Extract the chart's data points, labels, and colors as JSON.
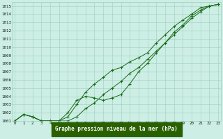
{
  "xlabel": "Graphe pression niveau de la mer (hPa)",
  "xlim": [
    -0.3,
    23.3
  ],
  "ylim": [
    1001,
    1015.5
  ],
  "yticks": [
    1001,
    1002,
    1003,
    1004,
    1005,
    1006,
    1007,
    1008,
    1009,
    1010,
    1011,
    1012,
    1013,
    1014,
    1015
  ],
  "xticks": [
    0,
    1,
    2,
    3,
    4,
    5,
    6,
    7,
    8,
    9,
    10,
    11,
    12,
    13,
    14,
    15,
    16,
    17,
    18,
    19,
    20,
    21,
    22,
    23
  ],
  "background_color": "#cceee4",
  "grid_color": "#9ecfbf",
  "line_color": "#1a6b1a",
  "label_bg_color": "#2a6000",
  "label_fg_color": "#ffffff",
  "series": [
    [
      1001.0,
      1001.8,
      1001.5,
      1001.0,
      1001.0,
      1001.0,
      1001.5,
      1003.0,
      1004.5,
      1005.5,
      1006.3,
      1007.2,
      1007.5,
      1008.2,
      1008.7,
      1009.3,
      1010.5,
      1011.5,
      1012.5,
      1013.3,
      1014.0,
      1014.8,
      1015.0,
      1015.2
    ],
    [
      1001.0,
      1001.8,
      1001.5,
      1001.0,
      1001.0,
      1001.0,
      1001.0,
      1001.5,
      1002.5,
      1003.2,
      1004.2,
      1005.0,
      1005.8,
      1006.8,
      1007.5,
      1008.5,
      1009.5,
      1010.5,
      1011.5,
      1012.5,
      1013.5,
      1014.3,
      1015.0,
      1015.2
    ],
    [
      1001.0,
      1001.8,
      1001.5,
      1001.0,
      1001.0,
      1001.0,
      1002.0,
      1003.5,
      1004.0,
      1003.8,
      1003.5,
      1003.8,
      1004.2,
      1005.5,
      1007.0,
      1008.0,
      1009.3,
      1010.5,
      1011.8,
      1012.7,
      1013.8,
      1014.5,
      1015.0,
      1015.2
    ]
  ]
}
